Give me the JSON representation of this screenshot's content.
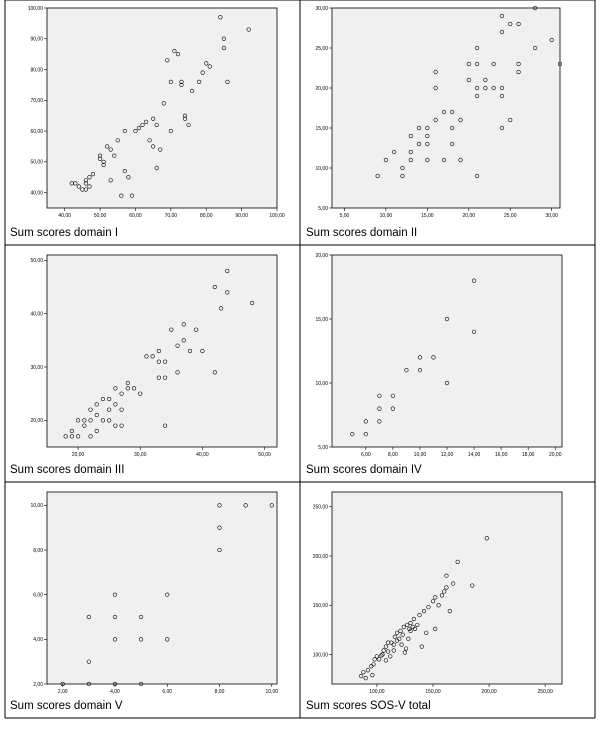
{
  "chart_data": [
    {
      "type": "scatter",
      "caption": "Sum scores domain I",
      "xlim": [
        35,
        100
      ],
      "ylim": [
        35,
        100
      ],
      "x_ticks": [
        40,
        50,
        60,
        70,
        80,
        90,
        100
      ],
      "y_ticks": [
        40,
        50,
        60,
        70,
        80,
        90,
        100
      ],
      "x_tick_labels": [
        "40,00",
        "50,00",
        "60,00",
        "70,00",
        "80,00",
        "90,00",
        "100,00"
      ],
      "y_tick_labels": [
        "40,00",
        "50,00",
        "60,00",
        "70,00",
        "80,00",
        "90,00",
        "100,00"
      ],
      "points": [
        [
          42,
          43
        ],
        [
          43,
          43
        ],
        [
          44,
          42
        ],
        [
          45,
          41
        ],
        [
          46,
          41
        ],
        [
          47,
          42
        ],
        [
          46,
          43
        ],
        [
          46,
          44
        ],
        [
          47,
          45
        ],
        [
          48,
          46
        ],
        [
          50,
          52
        ],
        [
          50,
          51
        ],
        [
          51,
          50
        ],
        [
          51,
          49
        ],
        [
          52,
          55
        ],
        [
          53,
          54
        ],
        [
          53,
          44
        ],
        [
          54,
          52
        ],
        [
          55,
          57
        ],
        [
          56,
          39
        ],
        [
          57,
          60
        ],
        [
          57,
          47
        ],
        [
          58,
          45
        ],
        [
          59,
          39
        ],
        [
          60,
          60
        ],
        [
          61,
          61
        ],
        [
          62,
          62
        ],
        [
          63,
          63
        ],
        [
          64,
          57
        ],
        [
          65,
          64
        ],
        [
          65,
          55
        ],
        [
          66,
          62
        ],
        [
          66,
          48
        ],
        [
          67,
          54
        ],
        [
          68,
          69
        ],
        [
          69,
          83
        ],
        [
          70,
          60
        ],
        [
          70,
          76
        ],
        [
          71,
          86
        ],
        [
          72,
          85
        ],
        [
          73,
          76
        ],
        [
          73,
          75
        ],
        [
          74,
          65
        ],
        [
          74,
          64
        ],
        [
          75,
          62
        ],
        [
          76,
          73
        ],
        [
          78,
          76
        ],
        [
          79,
          79
        ],
        [
          80,
          82
        ],
        [
          81,
          81
        ],
        [
          84,
          97
        ],
        [
          85,
          87
        ],
        [
          85,
          90
        ],
        [
          86,
          76
        ],
        [
          92,
          93
        ]
      ]
    },
    {
      "type": "scatter",
      "caption": "Sum scores domain II",
      "xlim": [
        3.5,
        31
      ],
      "ylim": [
        5,
        30
      ],
      "x_ticks": [
        5,
        10,
        15,
        20,
        25,
        30
      ],
      "y_ticks": [
        5,
        10,
        15,
        20,
        25,
        30
      ],
      "x_tick_labels": [
        "5,00",
        "10,00",
        "15,00",
        "20,00",
        "25,00",
        "30,00"
      ],
      "y_tick_labels": [
        "5,00",
        "10,00",
        "15,00",
        "20,00",
        "25,00",
        "30,00"
      ],
      "points": [
        [
          9,
          9
        ],
        [
          10,
          11
        ],
        [
          11,
          12
        ],
        [
          12,
          10
        ],
        [
          12,
          9
        ],
        [
          13,
          11
        ],
        [
          13,
          12
        ],
        [
          13,
          14
        ],
        [
          14,
          13
        ],
        [
          14,
          15
        ],
        [
          15,
          11
        ],
        [
          15,
          13
        ],
        [
          15,
          14
        ],
        [
          15,
          15
        ],
        [
          16,
          16
        ],
        [
          16,
          20
        ],
        [
          16,
          22
        ],
        [
          17,
          17
        ],
        [
          17,
          11
        ],
        [
          18,
          15
        ],
        [
          18,
          17
        ],
        [
          18,
          13
        ],
        [
          19,
          11
        ],
        [
          19,
          16
        ],
        [
          20,
          23
        ],
        [
          20,
          21
        ],
        [
          21,
          19
        ],
        [
          21,
          20
        ],
        [
          21,
          9
        ],
        [
          21,
          23
        ],
        [
          21,
          25
        ],
        [
          22,
          21
        ],
        [
          22,
          20
        ],
        [
          23,
          20
        ],
        [
          23,
          23
        ],
        [
          24,
          20
        ],
        [
          24,
          19
        ],
        [
          24,
          15
        ],
        [
          24,
          29
        ],
        [
          24,
          27
        ],
        [
          25,
          28
        ],
        [
          25,
          16
        ],
        [
          26,
          28
        ],
        [
          26,
          23
        ],
        [
          26,
          22
        ],
        [
          28,
          30
        ],
        [
          28,
          25
        ],
        [
          30,
          26
        ],
        [
          31,
          23
        ]
      ]
    },
    {
      "type": "scatter",
      "caption": "Sum scores domain III",
      "xlim": [
        15,
        52
      ],
      "ylim": [
        15,
        51
      ],
      "x_ticks": [
        20,
        30,
        40,
        50
      ],
      "y_ticks": [
        20,
        30,
        40,
        50
      ],
      "x_tick_labels": [
        "20,00",
        "30,00",
        "40,00",
        "50,00"
      ],
      "y_tick_labels": [
        "20,00",
        "30,00",
        "40,00",
        "50,00"
      ],
      "points": [
        [
          18,
          17
        ],
        [
          19,
          17
        ],
        [
          19,
          18
        ],
        [
          20,
          20
        ],
        [
          20,
          17
        ],
        [
          21,
          19
        ],
        [
          21,
          20
        ],
        [
          22,
          17
        ],
        [
          22,
          22
        ],
        [
          22,
          20
        ],
        [
          23,
          18
        ],
        [
          23,
          21
        ],
        [
          23,
          23
        ],
        [
          24,
          20
        ],
        [
          24,
          24
        ],
        [
          25,
          24
        ],
        [
          25,
          22
        ],
        [
          25,
          20
        ],
        [
          26,
          19
        ],
        [
          26,
          23
        ],
        [
          26,
          26
        ],
        [
          27,
          22
        ],
        [
          27,
          19
        ],
        [
          27,
          25
        ],
        [
          28,
          26
        ],
        [
          28,
          27
        ],
        [
          29,
          26
        ],
        [
          30,
          25
        ],
        [
          31,
          32
        ],
        [
          32,
          32
        ],
        [
          33,
          33
        ],
        [
          33,
          31
        ],
        [
          33,
          28
        ],
        [
          34,
          19
        ],
        [
          34,
          28
        ],
        [
          34,
          31
        ],
        [
          35,
          37
        ],
        [
          36,
          29
        ],
        [
          36,
          34
        ],
        [
          37,
          38
        ],
        [
          37,
          35
        ],
        [
          38,
          33
        ],
        [
          39,
          37
        ],
        [
          40,
          33
        ],
        [
          42,
          45
        ],
        [
          42,
          29
        ],
        [
          43,
          41
        ],
        [
          44,
          44
        ],
        [
          44,
          48
        ],
        [
          48,
          42
        ]
      ]
    },
    {
      "type": "scatter",
      "caption": "Sum scores domain IV",
      "xlim": [
        3.5,
        20.5
      ],
      "ylim": [
        5,
        20
      ],
      "x_ticks": [
        6,
        8,
        10,
        12,
        14,
        16,
        18,
        20
      ],
      "y_ticks": [
        5,
        10,
        15,
        20
      ],
      "x_tick_labels": [
        "6,00",
        "8,00",
        "10,00",
        "12,00",
        "14,00",
        "16,00",
        "18,00",
        "20,00"
      ],
      "y_tick_labels": [
        "5,00",
        "10,00",
        "15,00",
        "20,00"
      ],
      "points": [
        [
          5,
          6
        ],
        [
          6,
          6
        ],
        [
          6,
          7
        ],
        [
          7,
          7
        ],
        [
          7,
          8
        ],
        [
          7,
          9
        ],
        [
          8,
          8
        ],
        [
          8,
          9
        ],
        [
          9,
          11
        ],
        [
          10,
          11
        ],
        [
          10,
          12
        ],
        [
          11,
          12
        ],
        [
          12,
          10
        ],
        [
          12,
          15
        ],
        [
          14,
          14
        ],
        [
          14,
          18
        ]
      ]
    },
    {
      "type": "scatter",
      "caption": "Sum scores domain V",
      "xlim": [
        1.4,
        10.2
      ],
      "ylim": [
        2,
        10.6
      ],
      "x_ticks": [
        2,
        4,
        6,
        8,
        10
      ],
      "y_ticks": [
        2,
        4,
        6,
        8,
        10
      ],
      "x_tick_labels": [
        "2,00",
        "4,00",
        "6,00",
        "8,00",
        "10,00"
      ],
      "y_tick_labels": [
        "2,00",
        "4,00",
        "6,00",
        "8,00",
        "10,00"
      ],
      "points": [
        [
          2,
          2
        ],
        [
          3,
          2
        ],
        [
          3,
          3
        ],
        [
          3,
          5
        ],
        [
          4,
          2
        ],
        [
          4,
          4
        ],
        [
          4,
          5
        ],
        [
          4,
          6
        ],
        [
          5,
          2
        ],
        [
          5,
          4
        ],
        [
          5,
          5
        ],
        [
          6,
          4
        ],
        [
          6,
          6
        ],
        [
          8,
          8
        ],
        [
          8,
          9
        ],
        [
          8,
          10
        ],
        [
          9,
          10
        ],
        [
          10,
          10
        ]
      ]
    },
    {
      "type": "scatter",
      "caption": "Sum scores SOS-V total",
      "xlim": [
        60,
        265
      ],
      "ylim": [
        70,
        265
      ],
      "x_ticks": [
        100,
        150,
        200,
        250
      ],
      "y_ticks": [
        100,
        150,
        200,
        250
      ],
      "x_tick_labels": [
        "100,00",
        "150,00",
        "200,00",
        "250,00"
      ],
      "y_tick_labels": [
        "100,00",
        "150,00",
        "200,00",
        "250,00"
      ],
      "points": [
        [
          86,
          78
        ],
        [
          88,
          82
        ],
        [
          90,
          76
        ],
        [
          92,
          84
        ],
        [
          95,
          88
        ],
        [
          96,
          79
        ],
        [
          97,
          90
        ],
        [
          98,
          95
        ],
        [
          100,
          98
        ],
        [
          102,
          95
        ],
        [
          104,
          99
        ],
        [
          105,
          100
        ],
        [
          106,
          104
        ],
        [
          108,
          94
        ],
        [
          108,
          108
        ],
        [
          110,
          103
        ],
        [
          110,
          112
        ],
        [
          112,
          98
        ],
        [
          113,
          112
        ],
        [
          115,
          104
        ],
        [
          115,
          110
        ],
        [
          116,
          118
        ],
        [
          118,
          114
        ],
        [
          118,
          122
        ],
        [
          120,
          116
        ],
        [
          121,
          124
        ],
        [
          122,
          110
        ],
        [
          123,
          120
        ],
        [
          124,
          128
        ],
        [
          125,
          102
        ],
        [
          126,
          106
        ],
        [
          127,
          130
        ],
        [
          128,
          116
        ],
        [
          129,
          126
        ],
        [
          130,
          124
        ],
        [
          130,
          132
        ],
        [
          132,
          128
        ],
        [
          133,
          136
        ],
        [
          134,
          126
        ],
        [
          136,
          130
        ],
        [
          138,
          140
        ],
        [
          140,
          108
        ],
        [
          142,
          144
        ],
        [
          144,
          122
        ],
        [
          146,
          148
        ],
        [
          150,
          154
        ],
        [
          152,
          158
        ],
        [
          152,
          126
        ],
        [
          155,
          150
        ],
        [
          158,
          160
        ],
        [
          160,
          164
        ],
        [
          162,
          168
        ],
        [
          162,
          180
        ],
        [
          165,
          144
        ],
        [
          168,
          172
        ],
        [
          172,
          194
        ],
        [
          185,
          170
        ],
        [
          198,
          218
        ]
      ]
    }
  ]
}
